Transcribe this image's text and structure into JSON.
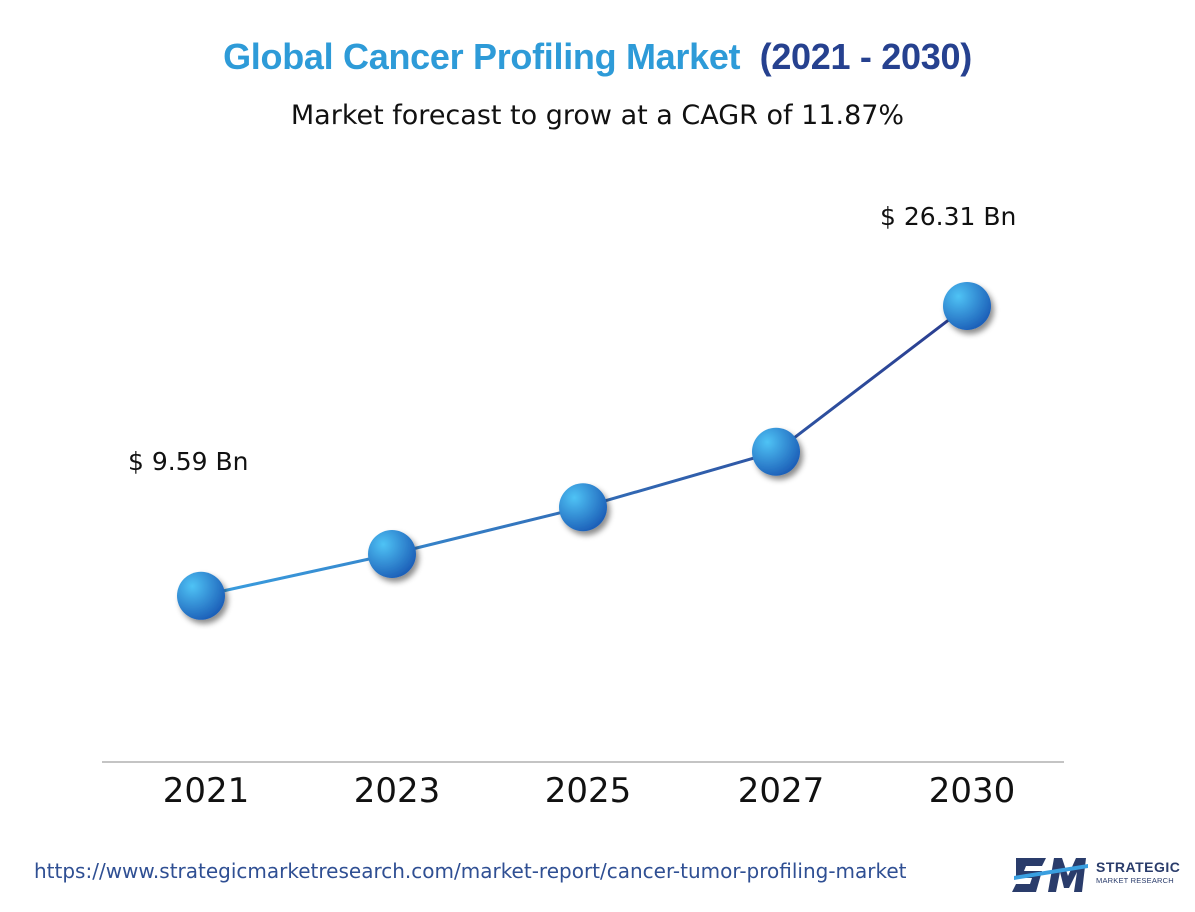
{
  "title_part1": "Global Cancer Profiling Market",
  "title_part2": "(2021 - 2030)",
  "subtitle": "Market forecast to grow at a CAGR of 11.87%",
  "source_url": "https://www.strategicmarketresearch.com/market-report/cancer-tumor-profiling-market",
  "logo": {
    "mark": "SM",
    "line1": "STRATEGIC",
    "line2": "MARKET RESEARCH"
  },
  "colors": {
    "title_light": "#2e9bd8",
    "title_dark": "#26418f",
    "line_start": "#3a9fe0",
    "line_end": "#2a3c8f",
    "marker_light": "#4fc3f5",
    "marker_dark": "#1c5fb8",
    "grid": "#555555"
  },
  "chart_data": {
    "type": "line",
    "title": "Global Cancer Profiling Market (2021 - 2030)",
    "subtitle": "Market forecast to grow at a CAGR of 11.87%",
    "x": [
      "2021",
      "2023",
      "2025",
      "2027",
      "2030"
    ],
    "series": [
      {
        "values": [
          9.59,
          12.0,
          14.7,
          17.9,
          26.31
        ]
      }
    ],
    "data_labels": [
      {
        "index": 0,
        "text": "$ 9.59 Bn"
      },
      {
        "index": 4,
        "text": "$ 26.31 Bn"
      }
    ],
    "ylim": [
      0,
      30
    ],
    "grid": true,
    "xlabel": "",
    "ylabel": ""
  }
}
